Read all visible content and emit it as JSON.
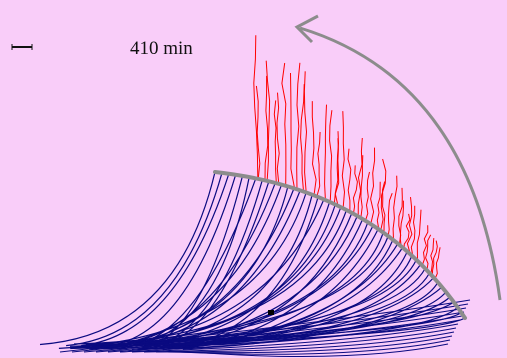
{
  "label": "410 min"
}
